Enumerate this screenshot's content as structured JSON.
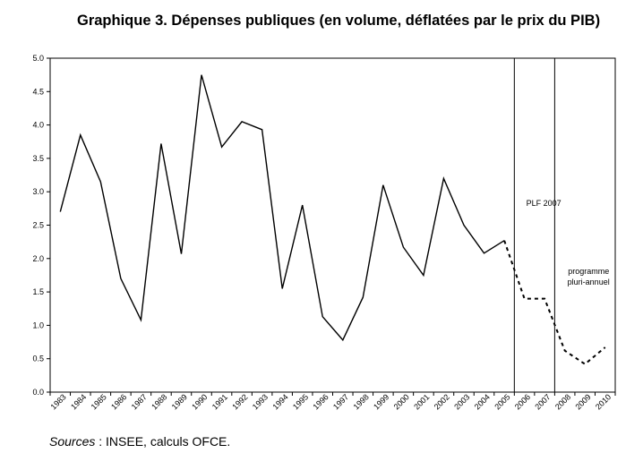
{
  "chart_data": {
    "type": "line",
    "title": "Graphique 3. Dépenses publiques (en volume, déflatées par le prix du PIB)",
    "xlabel": "",
    "ylabel": "",
    "ylim": [
      0.0,
      5.0
    ],
    "yticks": [
      "0.0",
      "0.5",
      "1.0",
      "1.5",
      "2.0",
      "2.5",
      "3.0",
      "3.5",
      "4.0",
      "4.5",
      "5.0"
    ],
    "categories": [
      "1983",
      "1984",
      "1985",
      "1986",
      "1987",
      "1988",
      "1989",
      "1990",
      "1991",
      "1992",
      "1993",
      "1994",
      "1995",
      "1996",
      "1997",
      "1998",
      "1999",
      "2000",
      "2001",
      "2002",
      "2003",
      "2004",
      "2005",
      "2006",
      "2007",
      "2008",
      "2009",
      "2010"
    ],
    "series": [
      {
        "style": "solid",
        "values": [
          2.7,
          3.85,
          3.15,
          1.7,
          1.08,
          3.72,
          2.07,
          4.75,
          3.67,
          4.05,
          3.93,
          1.55,
          2.8,
          1.13,
          0.78,
          1.42,
          3.1,
          2.17,
          1.75,
          3.2,
          2.5,
          2.08,
          2.27,
          null,
          null,
          null,
          null,
          null
        ]
      },
      {
        "style": "dashed",
        "values": [
          null,
          null,
          null,
          null,
          null,
          null,
          null,
          null,
          null,
          null,
          null,
          null,
          null,
          null,
          null,
          null,
          null,
          null,
          null,
          null,
          null,
          null,
          2.27,
          1.4,
          1.4,
          0.62,
          0.42,
          0.67
        ]
      }
    ],
    "vlines_after": [
      "2005",
      "2007"
    ],
    "annotations": [
      {
        "text": "PLF 2007",
        "region": "2006-2007"
      },
      {
        "text": "programme",
        "region": "2008-2010"
      },
      {
        "text": "pluri-annuel",
        "region": "2008-2010"
      }
    ],
    "grid": false,
    "legend": "none"
  },
  "footer": {
    "label": "Sources",
    "text": " : INSEE, calculs OFCE."
  }
}
